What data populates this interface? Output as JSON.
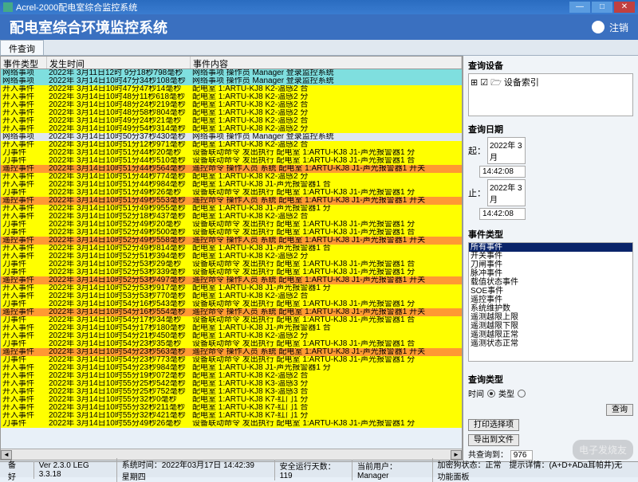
{
  "window": {
    "title": "Acrel-2000配电室综合监控系统"
  },
  "header": {
    "title": "配电室综合环境监控系统",
    "logout": "注销"
  },
  "tab": {
    "label": "件查询"
  },
  "grid": {
    "headers": [
      "事件类型",
      "发生时间",
      "事件内容"
    ],
    "rows": [
      {
        "bg": "c",
        "type": "网络事项",
        "time": "2022年 3月11日12时 9分18秒798毫秒",
        "content": "网络事项 操作员 Manager 登录监控系统"
      },
      {
        "bg": "c",
        "type": "网络事项",
        "time": "2022年 3月14日10时47分34秒108毫秒",
        "content": "网络事项 操作员 Manager 登录监控系统"
      },
      {
        "bg": "y",
        "type": "开入事件",
        "time": "2022年 3月14日10时47分47秒14毫秒",
        "content": "配电室 1:ARTU-KJ8 K2-温感2 合"
      },
      {
        "bg": "y",
        "type": "开入事件",
        "time": "2022年 3月14日10时48分11秒618毫秒",
        "content": "配电室 1:ARTU-KJ8 K2-温感2 分"
      },
      {
        "bg": "y",
        "type": "开入事件",
        "time": "2022年 3月14日10时48分24秒219毫秒",
        "content": "配电室 1:ARTU-KJ8 K2-温感2 合"
      },
      {
        "bg": "y",
        "type": "开入事件",
        "time": "2022年 3月14日10时48分58秒804毫秒",
        "content": "配电室 1:ARTU-KJ8 K2-温感2 分"
      },
      {
        "bg": "y",
        "type": "开入事件",
        "time": "2022年 3月14日10时49分24秒21毫秒",
        "content": "配电室 1:ARTU-KJ8 K2-温感2 合"
      },
      {
        "bg": "y",
        "type": "开入事件",
        "time": "2022年 3月14日10时49分54秒314毫秒",
        "content": "配电室 1:ARTU-KJ8 K2-温感2 分"
      },
      {
        "bg": "b",
        "type": "网络事项",
        "time": "2022年 3月14日10时50分37秒430毫秒",
        "content": "网络事项 操作员 Manager 登录监控系统"
      },
      {
        "bg": "y",
        "type": "开入事件",
        "time": "2022年 3月14日10时51分12秒971毫秒",
        "content": "配电室 1:ARTU-KJ8 K2-温感2 合"
      },
      {
        "bg": "y",
        "type": "刀事件",
        "time": "2022年 3月14日10时51分44秒20毫秒",
        "content": "设备联动命令 发出执行 配电室 1:ARTU-KJ8 J1-声光报警器1 分"
      },
      {
        "bg": "y",
        "type": "刀事件",
        "time": "2022年 3月14日10时51分44秒510毫秒",
        "content": "设备联动命令 发出执行 配电室 1:ARTU-KJ8 J1-声光报警器1 合"
      },
      {
        "bg": "o",
        "type": "遥控事件",
        "time": "2022年 3月14日10时51分44秒564毫秒",
        "content": "遥控命令 操作人员 系统 配电室 1:ARTU-KJ8 J1-声光报警器1 开关"
      },
      {
        "bg": "y",
        "type": "开入事件",
        "time": "2022年 3月14日10时51分44秒774毫秒",
        "content": "配电室 1:ARTU-KJ8 K2-温感2 分"
      },
      {
        "bg": "y",
        "type": "开入事件",
        "time": "2022年 3月14日10时51分44秒984毫秒",
        "content": "配电室 1:ARTU-KJ8 J1-声光报警器1 合"
      },
      {
        "bg": "y",
        "type": "刀事件",
        "time": "2022年 3月14日10时51分49秒26毫秒",
        "content": "设备联动命令 发出执行 配电室 1:ARTU-KJ8 J1-声光报警器1 分"
      },
      {
        "bg": "o",
        "type": "遥控事件",
        "time": "2022年 3月14日10时51分49秒553毫秒",
        "content": "遥控命令 操作人员 系统 配电室 1:ARTU-KJ8 J1-声光报警器1 开关"
      },
      {
        "bg": "y",
        "type": "开入事件",
        "time": "2022年 3月14日10时51分49秒955毫秒",
        "content": "配电室 1:ARTU-KJ8 J1-声光报警器1 分"
      },
      {
        "bg": "y",
        "type": "开入事件",
        "time": "2022年 3月14日10时52分18秒437毫秒",
        "content": "配电室 1:ARTU-KJ8 K2-温感2 合"
      },
      {
        "bg": "y",
        "type": "刀事件",
        "time": "2022年 3月14日10时52分49秒20毫秒",
        "content": "设备联动命令 发出执行 配电室 1:ARTU-KJ8 J1-声光报警器1 分"
      },
      {
        "bg": "y",
        "type": "刀事件",
        "time": "2022年 3月14日10时52分49秒500毫秒",
        "content": "设备联动命令 发出执行 配电室 1:ARTU-KJ8 J1-声光报警器1 合"
      },
      {
        "bg": "o",
        "type": "遥控事件",
        "time": "2022年 3月14日10时52分49秒558毫秒",
        "content": "遥控命令 操作人员 系统 配电室 1:ARTU-KJ8 J1-声光报警器1 开关"
      },
      {
        "bg": "y",
        "type": "开入事件",
        "time": "2022年 3月14日10时52分49秒814毫秒",
        "content": "配电室 1:ARTU-KJ8 J1-声光报警器1 合"
      },
      {
        "bg": "y",
        "type": "开入事件",
        "time": "2022年 3月14日10时52分51秒394毫秒",
        "content": "配电室 1:ARTU-KJ8 K2-温感2 分"
      },
      {
        "bg": "y",
        "type": "刀事件",
        "time": "2022年 3月14日10时52分53秒29毫秒",
        "content": "设备联动命令 发出执行 配电室 1:ARTU-KJ8 J1-声光报警器1 合"
      },
      {
        "bg": "y",
        "type": "刀事件",
        "time": "2022年 3月14日10时52分53秒339毫秒",
        "content": "设备联动命令 发出执行 配电室 1:ARTU-KJ8 J1-声光报警器1 分"
      },
      {
        "bg": "o",
        "type": "遥控事件",
        "time": "2022年 3月14日10时52分53秒497毫秒",
        "content": "遥控命令 操作人员 系统 配电室 1:ARTU-KJ8 J1-声光报警器1 开关"
      },
      {
        "bg": "y",
        "type": "开入事件",
        "time": "2022年 3月14日10时52分53秒917毫秒",
        "content": "配电室 1:ARTU-KJ8 J1-声光报警器1 分"
      },
      {
        "bg": "y",
        "type": "开入事件",
        "time": "2022年 3月14日10时53分53秒770毫秒",
        "content": "配电室 1:ARTU-KJ8 K2-温感2 合"
      },
      {
        "bg": "y",
        "type": "刀事件",
        "time": "2022年 3月14日10时54分16秒543毫秒",
        "content": "设备联动命令 发出执行 配电室 1:ARTU-KJ8 J1-声光报警器1 分"
      },
      {
        "bg": "o",
        "type": "遥控事件",
        "time": "2022年 3月14日10时54分16秒554毫秒",
        "content": "遥控命令 操作人员 系统 配电室 1:ARTU-KJ8 J1-声光报警器1 开关"
      },
      {
        "bg": "y",
        "type": "刀事件",
        "time": "2022年 3月14日10时54分17秒34毫秒",
        "content": "设备联动命令 发出执行 配电室 1:ARTU-KJ8 J1-声光报警器1 合"
      },
      {
        "bg": "y",
        "type": "开入事件",
        "time": "2022年 3月14日10时54分17秒180毫秒",
        "content": "配电室 1:ARTU-KJ8 J1-声光报警器1 合"
      },
      {
        "bg": "y",
        "type": "开入事件",
        "time": "2022年 3月14日10时54分21秒450毫秒",
        "content": "配电室 1:ARTU-KJ8 K2-温感2 分"
      },
      {
        "bg": "y",
        "type": "刀事件",
        "time": "2022年 3月14日10时54分23秒35毫秒",
        "content": "设备联动命令 发出执行 配电室 1:ARTU-KJ8 J1-声光报警器1 合"
      },
      {
        "bg": "o",
        "type": "遥控事件",
        "time": "2022年 3月14日10时54分23秒563毫秒",
        "content": "遥控命令 操作人员 系统 配电室 1:ARTU-KJ8 J1-声光报警器1 开关"
      },
      {
        "bg": "y",
        "type": "刀事件",
        "time": "2022年 3月14日10时54分23秒773毫秒",
        "content": "设备联动命令 发出执行 配电室 1:ARTU-KJ8 J1-声光报警器1 分"
      },
      {
        "bg": "y",
        "type": "开入事件",
        "time": "2022年 3月14日10时54分23秒984毫秒",
        "content": "配电室 1:ARTU-KJ8 J1-声光报警器1 分"
      },
      {
        "bg": "y",
        "type": "开入事件",
        "time": "2022年 3月14日10时55分19秒072毫秒",
        "content": "配电室 1:ARTU-KJ8 K2-温感2 合"
      },
      {
        "bg": "y",
        "type": "开入事件",
        "time": "2022年 3月14日10时55分25秒542毫秒",
        "content": "配电室 1:ARTU-KJ8 K3-温感3 分"
      },
      {
        "bg": "y",
        "type": "开入事件",
        "time": "2022年 3月14日10时55分25秒752毫秒",
        "content": "配电室 1:ARTU-KJ8 K3-温感3 合"
      },
      {
        "bg": "y",
        "type": "开入事件",
        "time": "2022年 3月14日10时55分32秒0毫秒",
        "content": "配电室 1:ARTU-KJ8 K7-红门1 分"
      },
      {
        "bg": "y",
        "type": "开入事件",
        "time": "2022年 3月14日10时55分32秒211毫秒",
        "content": "配电室 1:ARTU-KJ8 K7-红门1 合"
      },
      {
        "bg": "y",
        "type": "开入事件",
        "time": "2022年 3月14日10时55分32秒421毫秒",
        "content": "配电室 1:ARTU-KJ8 K7-红门1 分"
      },
      {
        "bg": "y",
        "type": "刀事件",
        "time": "2022年 3月14日10时55分49秒26毫秒",
        "content": "设备联动命令 发出执行 配电室 1:ARTU-KJ8 J1-声光报警器1 分"
      }
    ]
  },
  "tree": {
    "label": "查询设备",
    "root": "设备索引"
  },
  "query_date": {
    "label": "查询日期",
    "from_label": "起：",
    "from_date": "2022年 3月",
    "from_time": "14:42:08",
    "to_label": "止：",
    "to_date": "2022年 3月",
    "to_time": "14:42:08"
  },
  "event_types": {
    "label": "事件类型",
    "items": [
      "所有事件",
      "开关事件",
      "刀闸事件",
      "脉冲事件",
      "载值状态事件",
      "SOE事件",
      "遥控事件",
      "系统维护数",
      "遥测越限上限",
      "遥测越限下限",
      "遥测越限正常",
      "遥测状态正常"
    ],
    "selected_index": 0
  },
  "query_type": {
    "label": "查询类型",
    "time_label": "时间",
    "type_label": "类型"
  },
  "buttons": {
    "query": "查询",
    "print_opts": "打印选择项",
    "export_file": "导出到文件"
  },
  "count": {
    "label": "共查询到：",
    "value": "976"
  },
  "status": {
    "ready": "备好",
    "ver": "Ver 2.3.0 LEG 3.3.18",
    "systime_label": "系统时间：",
    "systime": "2022年03月17日 14:42:39 星期四",
    "runtime_label": "安全运行天数：",
    "runtime": "119",
    "user_label": "当前用户：",
    "user": "Manager",
    "extra": "加密狗状态：正常　提示详情：(A+D+ADa耳帕井)无功能面板"
  },
  "watermark": "电子发烧友"
}
